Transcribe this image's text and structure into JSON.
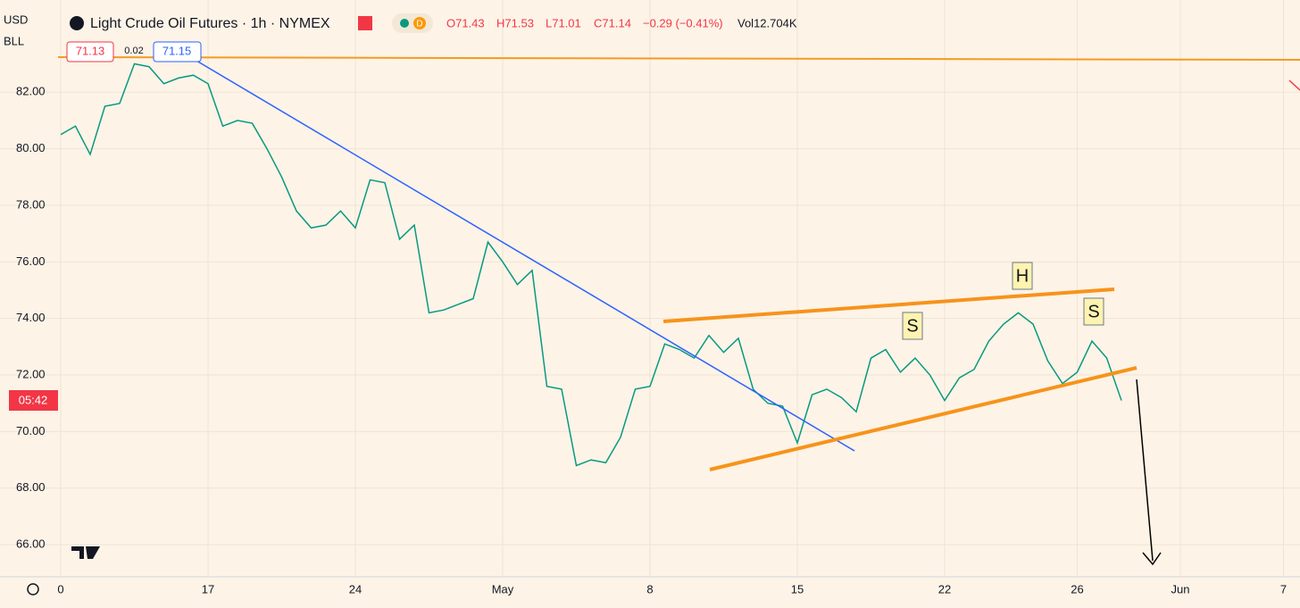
{
  "chart_data": {
    "type": "line",
    "title": "Light Crude Oil Futures · 1h · NYMEX",
    "currency": "USD",
    "unit": "BLL",
    "badge": "D",
    "ohlc": [
      "O71.43",
      "H71.53",
      "L71.01",
      "C71.14"
    ],
    "change": "−0.29 (−0.41%)",
    "volume": "Vol12.704K",
    "price_tags": [
      "71.13",
      "0.02",
      "71.15"
    ],
    "countdown": "05:42",
    "annotations": [
      "S",
      "H",
      "S"
    ],
    "categories": [
      "0",
      null,
      null,
      null,
      null,
      null,
      null,
      null,
      null,
      null,
      "17",
      null,
      null,
      null,
      null,
      null,
      null,
      null,
      null,
      null,
      "24",
      null,
      null,
      null,
      null,
      null,
      null,
      null,
      null,
      null,
      "May",
      null,
      null,
      null,
      null,
      null,
      null,
      null,
      null,
      null,
      "8",
      null,
      null,
      null,
      null,
      null,
      null,
      null,
      null,
      null,
      "15",
      null,
      null,
      null,
      null,
      null,
      null,
      null,
      null,
      null,
      "22",
      null,
      null,
      null,
      null,
      null,
      null,
      null,
      null,
      "26",
      null,
      null,
      null,
      null,
      null,
      null,
      "Jun",
      null,
      null,
      null,
      null,
      null,
      null,
      "7"
    ],
    "series": [
      {
        "name": "Close",
        "color": "#089981",
        "values": [
          80.5,
          80.8,
          79.8,
          81.5,
          81.6,
          83.0,
          82.9,
          82.3,
          82.5,
          82.6,
          82.3,
          80.8,
          81.0,
          80.9,
          80.0,
          79.0,
          77.8,
          77.2,
          77.3,
          77.8,
          77.2,
          78.9,
          78.8,
          76.8,
          77.3,
          74.2,
          74.3,
          74.5,
          74.7,
          76.7,
          76.0,
          75.2,
          75.7,
          71.6,
          71.5,
          68.8,
          69.0,
          68.9,
          69.8,
          71.5,
          71.6,
          73.1,
          72.9,
          72.6,
          73.4,
          72.8,
          73.3,
          71.5,
          71.0,
          70.9,
          69.6,
          71.3,
          71.5,
          71.2,
          70.7,
          72.6,
          72.9,
          72.1,
          72.6,
          72.0,
          71.1,
          71.9,
          72.2,
          73.2,
          73.8,
          74.2,
          73.8,
          72.5,
          71.7,
          72.1,
          73.2,
          72.6,
          71.1,
          null,
          null,
          null,
          null,
          null,
          null,
          null,
          null,
          null,
          null,
          null
        ]
      }
    ],
    "ylim": [
      64.9,
      85.1
    ],
    "yticks": [
      {
        "value": 66,
        "label": "66.00"
      },
      {
        "value": 68,
        "label": "68.00"
      },
      {
        "value": 70,
        "label": "70.00"
      },
      {
        "value": 72,
        "label": "72.00"
      },
      {
        "value": 74,
        "label": "74.00"
      },
      {
        "value": 76,
        "label": "76.00"
      },
      {
        "value": 78,
        "label": "78.00"
      },
      {
        "value": 80,
        "label": "80.00"
      },
      {
        "value": 82,
        "label": "82.00"
      }
    ],
    "grid": true
  }
}
